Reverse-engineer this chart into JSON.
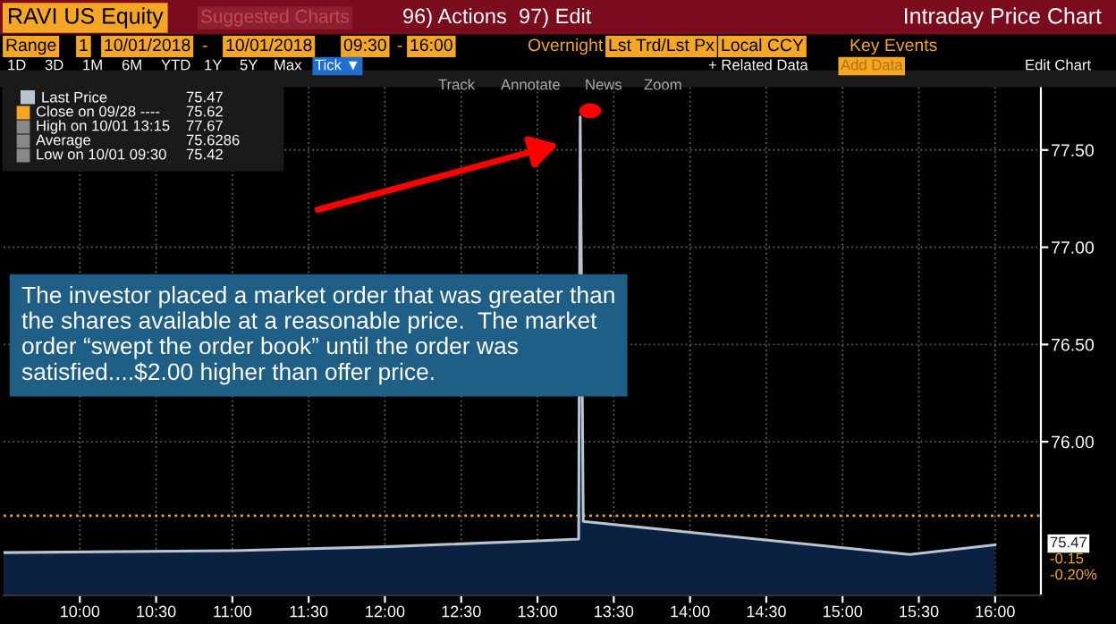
{
  "chart_data": {
    "type": "area",
    "title": "RAVI US Equity",
    "subtitle": "Intraday Price Chart",
    "x": [
      9.5,
      11.0,
      12.0,
      13.0,
      13.27,
      13.28,
      13.3,
      15.44,
      16.0
    ],
    "series": [
      {
        "name": "Last Price",
        "color": "#b8c4d0",
        "values": [
          75.43,
          75.44,
          75.46,
          75.49,
          75.5,
          77.67,
          75.59,
          75.42,
          75.47
        ]
      }
    ],
    "xlim": [
      9.5,
      16.3
    ],
    "xticks": [
      {
        "value": 10,
        "label": "10:00"
      },
      {
        "value": 10.5,
        "label": "10:30"
      },
      {
        "value": 11,
        "label": "11:00"
      },
      {
        "value": 11.5,
        "label": "11:30"
      },
      {
        "value": 12,
        "label": "12:00"
      },
      {
        "value": 12.5,
        "label": "12:30"
      },
      {
        "value": 13,
        "label": "13:00"
      },
      {
        "value": 13.5,
        "label": "13:30"
      },
      {
        "value": 14,
        "label": "14:00"
      },
      {
        "value": 14.5,
        "label": "14:30"
      },
      {
        "value": 15,
        "label": "15:00"
      },
      {
        "value": 15.5,
        "label": "15:30"
      },
      {
        "value": 16,
        "label": "16:00"
      }
    ],
    "ylim": [
      75.21,
      77.83
    ],
    "yticks": [
      {
        "value": 76,
        "label": "76.00"
      },
      {
        "value": 76.5,
        "label": "76.50"
      },
      {
        "value": 77,
        "label": "77.00"
      },
      {
        "value": 77.5,
        "label": "77.50"
      }
    ],
    "grid": true,
    "legend": "top left",
    "ref_lines": [
      {
        "axis": "y",
        "value": 75.62,
        "label": null,
        "color": "#f5a623",
        "line_style": "dotted"
      }
    ],
    "annotations": [
      "Suggested Charts",
      "96) Actions",
      "97) Edit",
      "Range",
      "1",
      "10/01/2018",
      "-",
      "10/01/2018",
      "09:30",
      "-",
      "16:00",
      "Overnight",
      "Lst Trd/Lst Px",
      "Local CCY",
      "Key Events",
      "1D",
      "3D",
      "1M",
      "6M",
      "YTD",
      "1Y",
      "5Y",
      "Max",
      "Tick ▼",
      "+ Related Data",
      "Add Data",
      "Edit Chart",
      "Track",
      "Annotate",
      "News",
      "Zoom",
      "75.47",
      "Close on 09/28 ----",
      "75.62",
      "High on 10/01 13:15",
      "77.67",
      "Average",
      "75.6286",
      "Low on 10/01 09:30",
      "75.42",
      "75.47",
      "-0.15",
      "-0.20%",
      "The investor placed a market order that was greater than the shares available at a reasonable price.  The market order “swept the order book” until the order was satisfied....$2.00 higher than offer price."
    ]
  }
}
